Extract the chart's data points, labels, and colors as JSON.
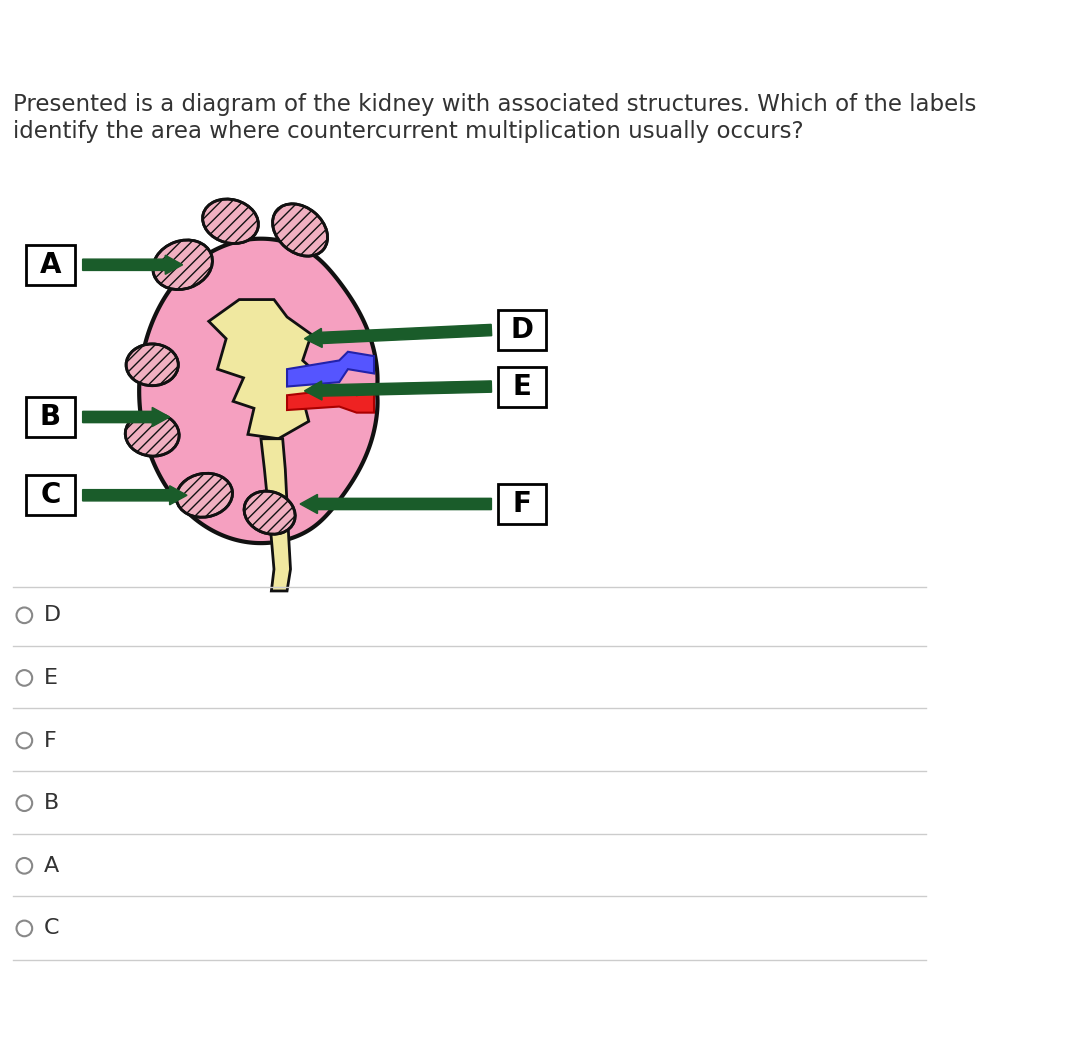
{
  "title_line1": "Presented is a diagram of the kidney with associated structures. Which of the labels",
  "title_line2": "identify the area where countercurrent multiplication usually occurs?",
  "background_color": "#ffffff",
  "kidney_pink": "#f5a0c0",
  "kidney_dark_pink": "#e8709a",
  "kidney_outline": "#111111",
  "pelvis_color": "#f0e8a0",
  "arrow_color": "#1a5c2a",
  "label_box_color": "#ffffff",
  "label_box_edge": "#111111",
  "options": [
    "D",
    "E",
    "F",
    "B",
    "A",
    "C"
  ],
  "option_font_size": 16,
  "title_font_size": 16.5
}
